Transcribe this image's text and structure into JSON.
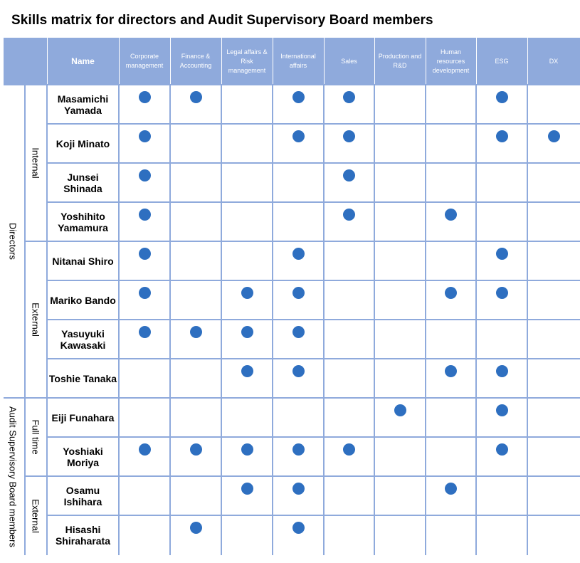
{
  "title": "Skills matrix for directors and Audit Supervisory Board members",
  "headers": {
    "name": "Name",
    "skills": [
      "Corporate management",
      "Finance & Accounting",
      "Legal affairs & Risk management",
      "International affairs",
      "Sales",
      "Production and R&D",
      "Human resources development",
      "ESG",
      "DX"
    ]
  },
  "groups": [
    {
      "label": "Directors"
    },
    {
      "label": "Audit Supervisory Board members"
    }
  ],
  "subgroups": [
    {
      "label": "Internal"
    },
    {
      "label": "External"
    },
    {
      "label": "Full time"
    },
    {
      "label": "External"
    }
  ],
  "people": [
    {
      "name": "Masamichi Yamada",
      "skills": [
        1,
        1,
        0,
        1,
        1,
        0,
        0,
        1,
        0
      ]
    },
    {
      "name": "Koji Minato",
      "skills": [
        1,
        0,
        0,
        1,
        1,
        0,
        0,
        1,
        1
      ]
    },
    {
      "name": "Junsei Shinada",
      "skills": [
        1,
        0,
        0,
        0,
        1,
        0,
        0,
        0,
        0
      ]
    },
    {
      "name": "Yoshihito Yamamura",
      "skills": [
        1,
        0,
        0,
        0,
        1,
        0,
        1,
        0,
        0
      ]
    },
    {
      "name": "Nitanai Shiro",
      "skills": [
        1,
        0,
        0,
        1,
        0,
        0,
        0,
        1,
        0
      ]
    },
    {
      "name": "Mariko Bando",
      "skills": [
        1,
        0,
        1,
        1,
        0,
        0,
        1,
        1,
        0
      ]
    },
    {
      "name": "Yasuyuki Kawasaki",
      "skills": [
        1,
        1,
        1,
        1,
        0,
        0,
        0,
        0,
        0
      ]
    },
    {
      "name": "Toshie Tanaka",
      "skills": [
        0,
        0,
        1,
        1,
        0,
        0,
        1,
        1,
        0
      ]
    },
    {
      "name": "Eiji Funahara",
      "skills": [
        0,
        0,
        0,
        0,
        0,
        1,
        0,
        1,
        0
      ]
    },
    {
      "name": "Yoshiaki Moriya",
      "skills": [
        1,
        1,
        1,
        1,
        1,
        0,
        0,
        1,
        0
      ]
    },
    {
      "name": "Osamu Ishihara",
      "skills": [
        0,
        0,
        1,
        1,
        0,
        0,
        1,
        0,
        0
      ]
    },
    {
      "name": "Hisashi Shiraharata",
      "skills": [
        0,
        1,
        0,
        1,
        0,
        0,
        0,
        0,
        0
      ]
    }
  ],
  "colors": {
    "header": "#8faadc",
    "dot": "#2e6fc0"
  },
  "icons": {
    "skill_marker": "filled-circle-icon"
  }
}
